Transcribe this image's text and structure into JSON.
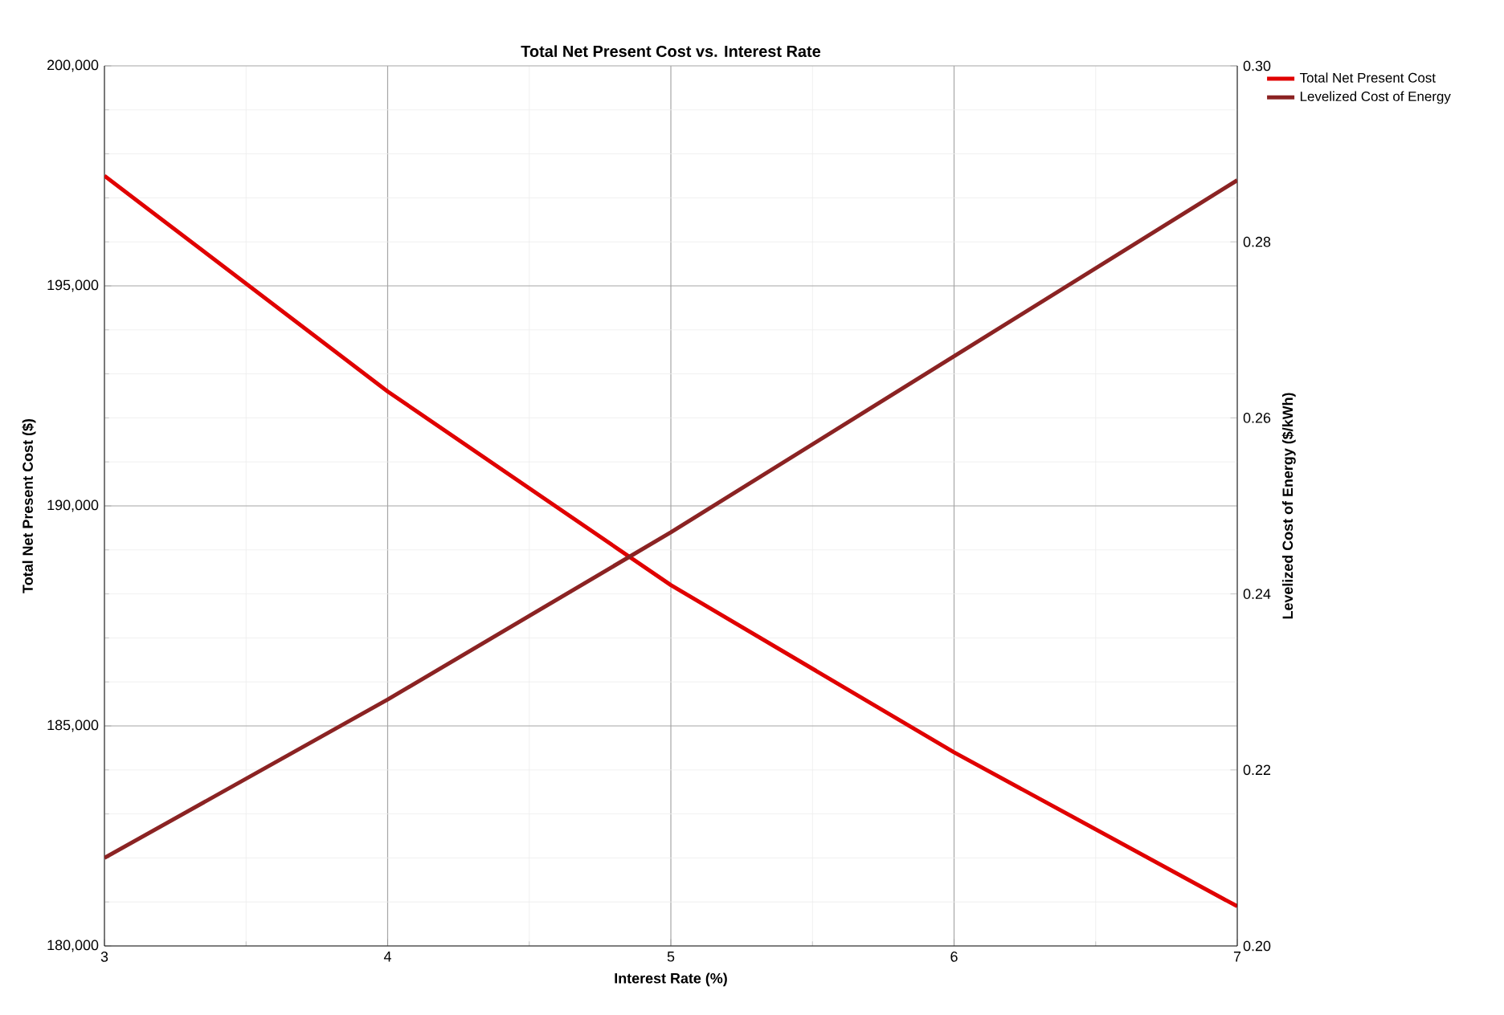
{
  "chart_data": {
    "type": "line",
    "title": "Total Net Present Cost vs. Interest Rate",
    "xlabel": "Interest Rate (%)",
    "ylabel": "Total Net Present Cost ($)",
    "y2label": "Levelized Cost of Energy ($/kWh)",
    "x": [
      3,
      4,
      5,
      6,
      7
    ],
    "series": [
      {
        "name": "Total Net Present Cost",
        "color": "#e00000",
        "values": [
          197500,
          192600,
          188200,
          184400,
          180900
        ]
      },
      {
        "name": "Levelized Cost of Energy",
        "color": "#8b2323",
        "axis": "y2",
        "values": [
          0.21,
          0.228,
          0.247,
          0.267,
          0.287
        ]
      }
    ],
    "xlim": [
      3,
      7
    ],
    "xticks": [
      3,
      4,
      5,
      6,
      7
    ],
    "ylim": [
      180000,
      200000
    ],
    "yticks": [
      {
        "value": 180000,
        "label": "180,000"
      },
      {
        "value": 185000,
        "label": "185,000"
      },
      {
        "value": 190000,
        "label": "190,000"
      },
      {
        "value": 195000,
        "label": "195,000"
      },
      {
        "value": 200000,
        "label": "200,000"
      }
    ],
    "y2lim": [
      0.2,
      0.3
    ],
    "y2ticks": [
      {
        "value": 0.2,
        "label": "0.20"
      },
      {
        "value": 0.22,
        "label": "0.22"
      },
      {
        "value": 0.24,
        "label": "0.24"
      },
      {
        "value": 0.26,
        "label": "0.26"
      },
      {
        "value": 0.28,
        "label": "0.28"
      },
      {
        "value": 0.3,
        "label": "0.30"
      }
    ],
    "grid": true,
    "legend": "top right",
    "marker": "none",
    "line_style": "solid"
  }
}
